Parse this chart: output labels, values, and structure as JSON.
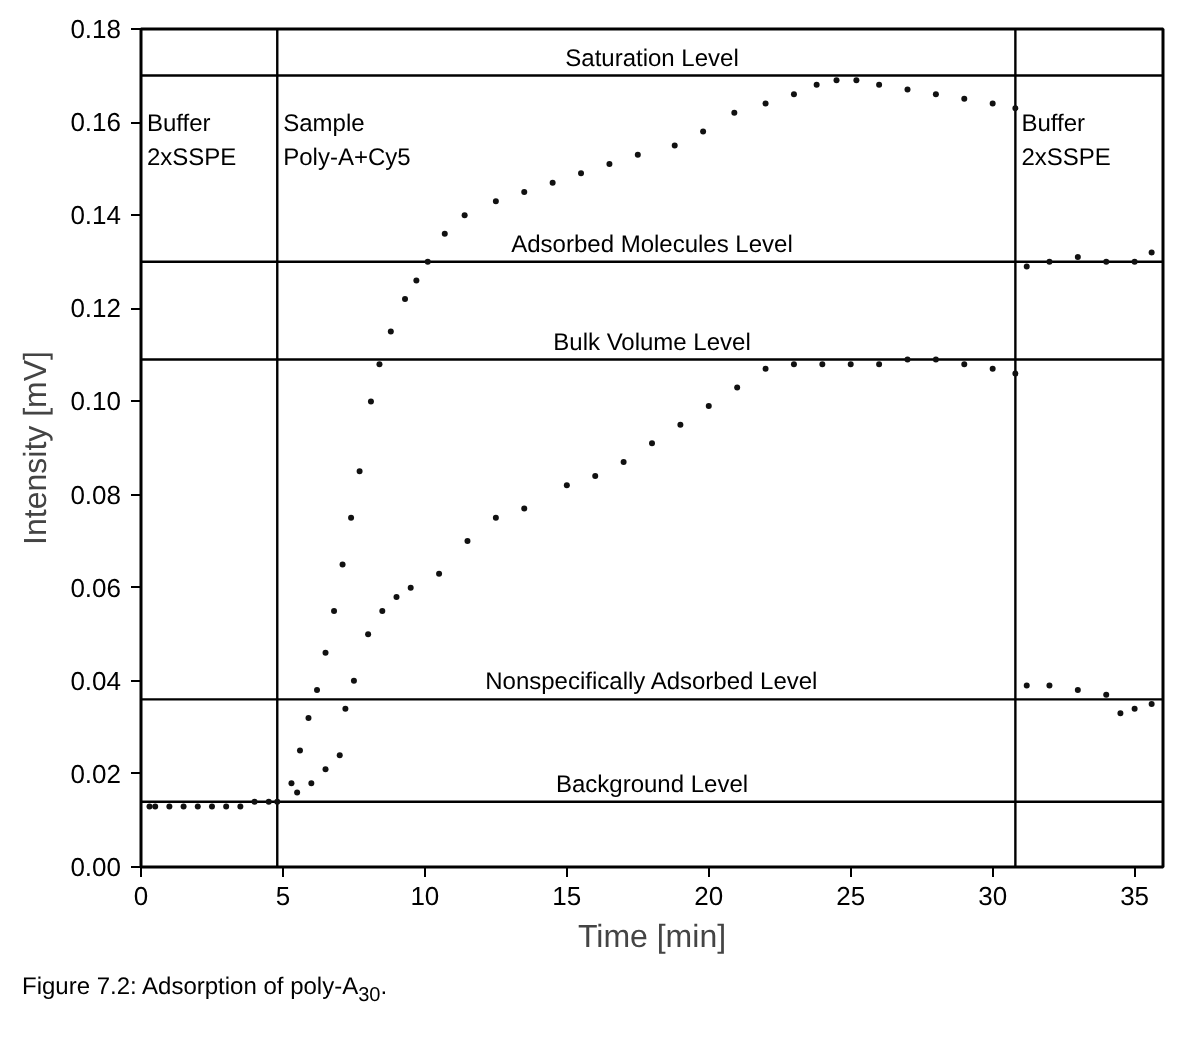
{
  "chart_data": {
    "type": "scatter",
    "xlabel": "Time [min]",
    "ylabel": "Intensity [mV]",
    "marker": "circle",
    "grid": false,
    "xlim": [
      0,
      36
    ],
    "ylim": [
      0,
      0.18
    ],
    "xticks": [
      0,
      5,
      10,
      15,
      20,
      25,
      30,
      35
    ],
    "yticks": [
      {
        "value": 0,
        "label": "0.00"
      },
      {
        "value": 0.02,
        "label": "0.02"
      },
      {
        "value": 0.04,
        "label": "0.04"
      },
      {
        "value": 0.06,
        "label": "0.06"
      },
      {
        "value": 0.08,
        "label": "0.08"
      },
      {
        "value": 0.1,
        "label": "0.10"
      },
      {
        "value": 0.12,
        "label": "0.12"
      },
      {
        "value": 0.14,
        "label": "0.14"
      },
      {
        "value": 0.16,
        "label": "0.16"
      },
      {
        "value": 0.18,
        "label": "0.18"
      }
    ],
    "series": [
      {
        "color": "#111111",
        "x": [
          0.3,
          1,
          2,
          3,
          4,
          4.8,
          5.3,
          5.6,
          5.9,
          6.2,
          6.5,
          6.8,
          7.1,
          7.4,
          7.7,
          8.1,
          8.4,
          8.8,
          9.3,
          9.7,
          10.1,
          10.7,
          11.4,
          12.5,
          13.5,
          14.5,
          15.5,
          16.5,
          17.5,
          18.8,
          19.8,
          20.9,
          22,
          23,
          23.8,
          24.5,
          25.2,
          26,
          27,
          28,
          29,
          30,
          30.8,
          31.2,
          32,
          33,
          34,
          35,
          35.6
        ],
        "values": [
          0.013,
          0.013,
          0.013,
          0.013,
          0.014,
          0.014,
          0.018,
          0.025,
          0.032,
          0.038,
          0.046,
          0.055,
          0.065,
          0.075,
          0.085,
          0.1,
          0.108,
          0.115,
          0.122,
          0.126,
          0.13,
          0.136,
          0.14,
          0.143,
          0.145,
          0.147,
          0.149,
          0.151,
          0.153,
          0.155,
          0.158,
          0.162,
          0.164,
          0.166,
          0.168,
          0.169,
          0.169,
          0.168,
          0.167,
          0.166,
          0.165,
          0.164,
          0.163,
          0.129,
          0.13,
          0.131,
          0.13,
          0.13,
          0.132
        ]
      },
      {
        "color": "#111111",
        "x": [
          0.5,
          1.5,
          2.5,
          3.5,
          4.5,
          5.5,
          6,
          6.5,
          7,
          7.2,
          7.5,
          8,
          8.5,
          9,
          9.5,
          10.5,
          11.5,
          12.5,
          13.5,
          15,
          16,
          17,
          18,
          19,
          20,
          21,
          22,
          23,
          24,
          25,
          26,
          27,
          28,
          29,
          30,
          30.8,
          31.2,
          32,
          33,
          34,
          34.5,
          35,
          35.6
        ],
        "values": [
          0.013,
          0.013,
          0.013,
          0.013,
          0.014,
          0.016,
          0.018,
          0.021,
          0.024,
          0.034,
          0.04,
          0.05,
          0.055,
          0.058,
          0.06,
          0.063,
          0.07,
          0.075,
          0.077,
          0.082,
          0.084,
          0.087,
          0.091,
          0.095,
          0.099,
          0.103,
          0.107,
          0.108,
          0.108,
          0.108,
          0.108,
          0.109,
          0.109,
          0.108,
          0.107,
          0.106,
          0.039,
          0.039,
          0.038,
          0.037,
          0.033,
          0.034,
          0.035
        ]
      }
    ],
    "ref_lines": [
      {
        "axis": "y",
        "value": 0.17,
        "label": "Saturation Level"
      },
      {
        "axis": "y",
        "value": 0.13,
        "label": "Adsorbed Molecules Level"
      },
      {
        "axis": "y",
        "value": 0.109,
        "label": "Bulk Volume Level"
      },
      {
        "axis": "y",
        "value": 0.036,
        "label": "Nonspecifically Adsorbed Level"
      },
      {
        "axis": "y",
        "value": 0.014,
        "label": "Background Level"
      },
      {
        "axis": "x",
        "value": 4.8,
        "label": "Sample\nPoly-A+Cy5"
      },
      {
        "axis": "x",
        "value": 30.8,
        "label": "Buffer\n2xSSPE"
      }
    ],
    "annotations": [
      "Buffer\n2xSSPE",
      "Figure 7.2: Adsorption of poly-A$_{30}$."
    ]
  }
}
